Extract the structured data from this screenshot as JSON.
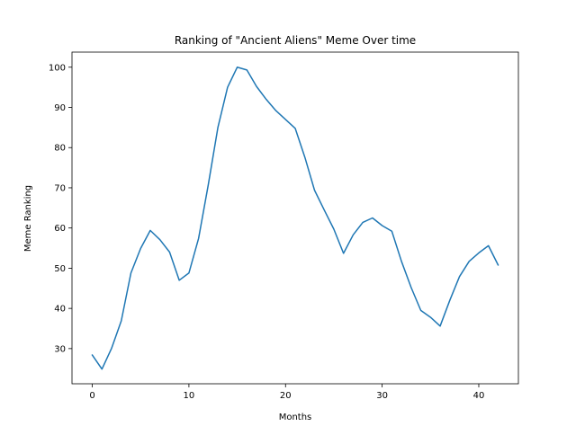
{
  "chart_data": {
    "type": "line",
    "title": "Ranking of \"Ancient Aliens\" Meme Over time",
    "xlabel": "Months",
    "ylabel": "Meme Ranking",
    "xlim": [
      -2.1,
      44.1
    ],
    "ylim": [
      21.25,
      103.75
    ],
    "xticks": [
      0,
      10,
      20,
      30,
      40
    ],
    "yticks": [
      30,
      40,
      50,
      60,
      70,
      80,
      90,
      100
    ],
    "grid": false,
    "legend": false,
    "series": [
      {
        "color": "#1f77b4",
        "x": [
          0,
          1,
          2,
          3,
          4,
          5,
          6,
          7,
          8,
          9,
          10,
          11,
          12,
          13,
          14,
          15,
          16,
          17,
          18,
          19,
          20,
          21,
          22,
          23,
          24,
          25,
          26,
          27,
          28,
          29,
          30,
          31,
          32,
          33,
          34,
          35,
          36,
          37,
          38,
          39,
          40,
          41,
          42
        ],
        "y": [
          28.4,
          24.9,
          30.1,
          36.9,
          48.8,
          54.9,
          59.4,
          57.1,
          54.0,
          47.0,
          48.8,
          57.4,
          70.7,
          85.0,
          95.0,
          100.0,
          99.3,
          95.2,
          92.0,
          89.2,
          87.0,
          84.8,
          77.6,
          69.4,
          64.5,
          59.7,
          53.7,
          58.3,
          61.4,
          62.5,
          60.6,
          59.2,
          51.7,
          45.2,
          39.5,
          37.8,
          35.6,
          42.0,
          47.9,
          51.7,
          53.8,
          55.6,
          50.8
        ]
      }
    ]
  }
}
